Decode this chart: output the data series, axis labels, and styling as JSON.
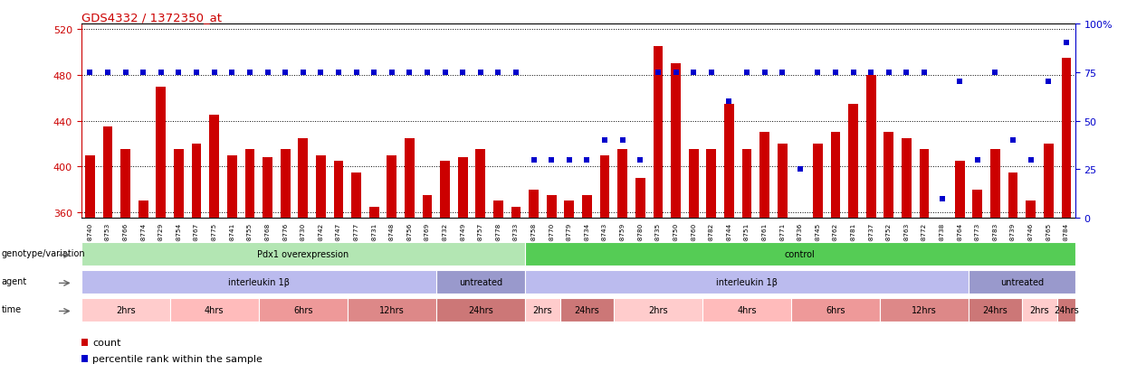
{
  "title": "GDS4332 / 1372350_at",
  "samples": [
    "GSM998740",
    "GSM998753",
    "GSM998766",
    "GSM998774",
    "GSM998729",
    "GSM998754",
    "GSM998767",
    "GSM998775",
    "GSM998741",
    "GSM998755",
    "GSM998768",
    "GSM998776",
    "GSM998730",
    "GSM998742",
    "GSM998747",
    "GSM998777",
    "GSM998731",
    "GSM998748",
    "GSM998756",
    "GSM998769",
    "GSM998732",
    "GSM998749",
    "GSM998757",
    "GSM998778",
    "GSM998733",
    "GSM998758",
    "GSM998770",
    "GSM998779",
    "GSM998734",
    "GSM998743",
    "GSM998759",
    "GSM998780",
    "GSM998735",
    "GSM998750",
    "GSM998760",
    "GSM998782",
    "GSM998744",
    "GSM998751",
    "GSM998761",
    "GSM998771",
    "GSM998736",
    "GSM998745",
    "GSM998762",
    "GSM998781",
    "GSM998737",
    "GSM998752",
    "GSM998763",
    "GSM998772",
    "GSM998738",
    "GSM998764",
    "GSM998773",
    "GSM998783",
    "GSM998739",
    "GSM998746",
    "GSM998765",
    "GSM998784"
  ],
  "bar_values": [
    410,
    435,
    415,
    370,
    470,
    415,
    420,
    445,
    410,
    415,
    408,
    415,
    425,
    410,
    405,
    395,
    365,
    410,
    425,
    375,
    405,
    408,
    415,
    370,
    365,
    380,
    375,
    370,
    375,
    410,
    415,
    390,
    505,
    490,
    415,
    415,
    455,
    415,
    430,
    420,
    355,
    420,
    430,
    455,
    480,
    430,
    425,
    415,
    340,
    405,
    380,
    415,
    395,
    370,
    420,
    495
  ],
  "percentile_values": [
    75,
    75,
    75,
    75,
    75,
    75,
    75,
    75,
    75,
    75,
    75,
    75,
    75,
    75,
    75,
    75,
    75,
    75,
    75,
    75,
    75,
    75,
    75,
    75,
    75,
    30,
    30,
    30,
    30,
    40,
    40,
    30,
    75,
    75,
    75,
    75,
    60,
    75,
    75,
    75,
    25,
    75,
    75,
    75,
    75,
    75,
    75,
    75,
    10,
    70,
    30,
    75,
    40,
    30,
    70,
    90
  ],
  "ylim_left": [
    355,
    525
  ],
  "ylim_right": [
    0,
    100
  ],
  "yticks_left": [
    360,
    400,
    440,
    480,
    520
  ],
  "yticks_right": [
    0,
    25,
    50,
    75,
    100
  ],
  "ytick_right_labels": [
    "0",
    "25",
    "50",
    "75",
    "100%"
  ],
  "bar_color": "#cc0000",
  "percentile_color": "#0000cc",
  "title_color": "#cc0000",
  "right_axis_color": "#0000cc",
  "left_axis_color": "#cc0000",
  "genotype_groups": [
    {
      "label": "Pdx1 overexpression",
      "start": 0,
      "end": 25,
      "color": "#b3e6b3"
    },
    {
      "label": "control",
      "start": 25,
      "end": 56,
      "color": "#55cc55"
    }
  ],
  "agent_groups": [
    {
      "label": "interleukin 1β",
      "start": 0,
      "end": 20,
      "color": "#bbbbee"
    },
    {
      "label": "untreated",
      "start": 20,
      "end": 25,
      "color": "#9999cc"
    },
    {
      "label": "interleukin 1β",
      "start": 25,
      "end": 50,
      "color": "#bbbbee"
    },
    {
      "label": "untreated",
      "start": 50,
      "end": 56,
      "color": "#9999cc"
    }
  ],
  "time_groups": [
    {
      "label": "2hrs",
      "start": 0,
      "end": 5,
      "color": "#ffcccc"
    },
    {
      "label": "4hrs",
      "start": 5,
      "end": 10,
      "color": "#ffbbbb"
    },
    {
      "label": "6hrs",
      "start": 10,
      "end": 15,
      "color": "#ee9999"
    },
    {
      "label": "12hrs",
      "start": 15,
      "end": 20,
      "color": "#dd8888"
    },
    {
      "label": "24hrs",
      "start": 20,
      "end": 25,
      "color": "#cc7777"
    },
    {
      "label": "2hrs",
      "start": 25,
      "end": 27,
      "color": "#ffcccc"
    },
    {
      "label": "24hrs",
      "start": 27,
      "end": 30,
      "color": "#cc7777"
    },
    {
      "label": "2hrs",
      "start": 30,
      "end": 35,
      "color": "#ffcccc"
    },
    {
      "label": "4hrs",
      "start": 35,
      "end": 40,
      "color": "#ffbbbb"
    },
    {
      "label": "6hrs",
      "start": 40,
      "end": 45,
      "color": "#ee9999"
    },
    {
      "label": "12hrs",
      "start": 45,
      "end": 50,
      "color": "#dd8888"
    },
    {
      "label": "24hrs",
      "start": 50,
      "end": 53,
      "color": "#cc7777"
    },
    {
      "label": "2hrs",
      "start": 53,
      "end": 55,
      "color": "#ffcccc"
    },
    {
      "label": "24hrs",
      "start": 55,
      "end": 56,
      "color": "#cc7777"
    }
  ],
  "row_labels": [
    "genotype/variation",
    "agent",
    "time"
  ],
  "legend_count_label": "count",
  "legend_pct_label": "percentile rank within the sample",
  "fig_width": 12.45,
  "fig_height": 4.14,
  "dpi": 100
}
